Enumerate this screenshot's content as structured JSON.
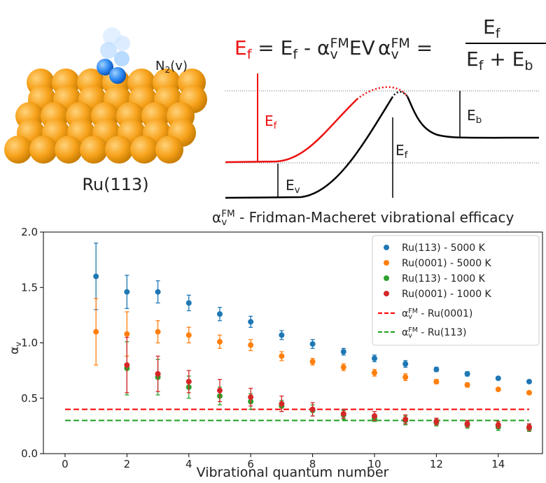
{
  "illustration": {
    "molecule": [
      "N",
      "2",
      "(v)"
    ],
    "surface": "Ru(113)"
  },
  "equations": {
    "e1": [
      "E",
      "f",
      " = E",
      "f",
      " - α",
      "v",
      "FM",
      "E",
      "V"
    ],
    "e2": [
      "α",
      "v",
      "FM",
      " = "
    ],
    "numerator": [
      "E",
      "f"
    ],
    "denominator": [
      "E",
      "f",
      " + E",
      "b"
    ]
  },
  "energy_labels": {
    "ef_red": [
      "E",
      "f"
    ],
    "eb": [
      "E",
      "b"
    ],
    "ef": [
      "E",
      "f"
    ],
    "ev": [
      "E",
      "v"
    ]
  },
  "caption": [
    "α",
    "v",
    "FM",
    " - Fridman-Macheret vibrational efficacy"
  ],
  "chart_data": {
    "type": "scatter",
    "xlabel": "Vibrational quantum number",
    "ylabel": [
      "α",
      "v"
    ],
    "x": [
      1,
      2,
      3,
      4,
      5,
      6,
      7,
      8,
      9,
      10,
      11,
      12,
      13,
      14,
      15
    ],
    "xlim": [
      -0.7,
      15.43
    ],
    "xticks": [
      0,
      2,
      4,
      6,
      8,
      10,
      12,
      14
    ],
    "ylim": [
      0,
      2.0
    ],
    "yticks": [
      {
        "value": 0,
        "label": "0.0"
      },
      0.5,
      {
        "value": 1,
        "label": "1.0"
      },
      1.5,
      {
        "value": 2,
        "label": "2.0"
      }
    ],
    "legend": "upper right",
    "series": [
      {
        "name": "Ru(113) - 5000 K",
        "color": "#1f77b4",
        "values": [
          1.6,
          1.46,
          1.46,
          1.36,
          1.26,
          1.19,
          1.07,
          0.99,
          0.92,
          0.86,
          0.81,
          0.76,
          0.72,
          0.68,
          0.65
        ],
        "errors": [
          0.3,
          0.15,
          0.1,
          0.07,
          0.06,
          0.05,
          0.04,
          0.04,
          0.03,
          0.03,
          0.03,
          0.02,
          0.02,
          0.015,
          0.015
        ]
      },
      {
        "name": "Ru(0001) - 5000 K",
        "color": "#ff7f0e",
        "values": [
          1.1,
          1.08,
          1.1,
          1.07,
          1.01,
          0.98,
          0.88,
          0.83,
          0.78,
          0.73,
          0.69,
          0.65,
          0.62,
          0.58,
          0.55
        ],
        "errors": [
          0.3,
          0.2,
          0.1,
          0.07,
          0.06,
          0.05,
          0.04,
          0.03,
          0.03,
          0.03,
          0.03,
          0.02,
          0.02,
          0.015,
          0.015
        ]
      },
      {
        "name": "Ru(113) - 1000 K",
        "color": "#2ca02c",
        "values": [
          null,
          0.77,
          0.69,
          0.6,
          0.52,
          0.47,
          0.43,
          0.39,
          0.35,
          0.32,
          0.3,
          0.28,
          0.26,
          0.24,
          0.23
        ],
        "errors": [
          null,
          0.24,
          0.16,
          0.1,
          0.08,
          0.07,
          0.05,
          0.05,
          0.04,
          0.03,
          0.04,
          0.03,
          0.03,
          0.03,
          0.03
        ]
      },
      {
        "name": "Ru(0001) - 1000 K",
        "color": "#d62728",
        "values": [
          null,
          0.8,
          0.72,
          0.65,
          0.57,
          0.51,
          0.45,
          0.4,
          0.36,
          0.34,
          0.31,
          0.29,
          0.27,
          0.26,
          0.24
        ],
        "errors": [
          null,
          0.25,
          0.16,
          0.1,
          0.1,
          0.08,
          0.07,
          0.06,
          0.04,
          0.04,
          0.04,
          0.03,
          0.03,
          0.03,
          0.03
        ]
      }
    ],
    "lines": [
      {
        "symbol": [
          "α",
          "v",
          "FM"
        ],
        "name": " - Ru(0001)",
        "color": "#ff0000",
        "x": [
          0,
          15
        ],
        "values": [
          0.4,
          0.4
        ]
      },
      {
        "symbol": [
          "α",
          "v",
          "FM"
        ],
        "name": " - Ru(113)",
        "color": "#1a9e1a",
        "x": [
          0,
          15
        ],
        "values": [
          0.3,
          0.3
        ]
      }
    ]
  }
}
